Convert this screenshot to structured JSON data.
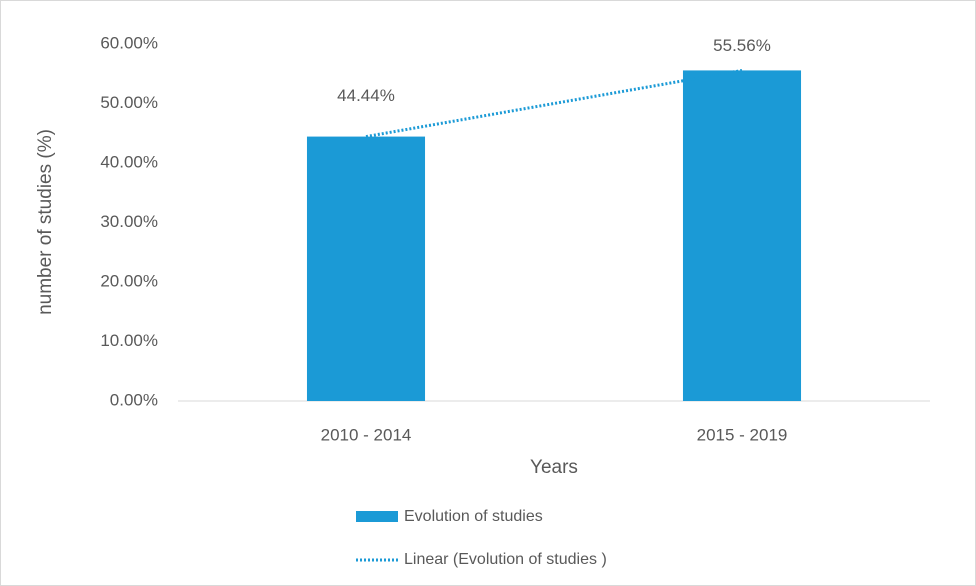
{
  "chart_data": {
    "type": "bar",
    "x_label": "Years",
    "y_label": "number of studies (%)",
    "categories": [
      "2010 - 2014",
      "2015 - 2019"
    ],
    "series": [
      {
        "name": "Evolution of studies",
        "color": "#1b9ad6",
        "values": [
          44.44,
          55.56
        ],
        "value_labels": [
          "44.44%",
          "55.56%"
        ]
      }
    ],
    "trendline": {
      "name": "Linear (Evolution of studies )",
      "color": "#1b9ad6"
    },
    "ylim": [
      0,
      60
    ],
    "yticks": [
      {
        "value": 0,
        "label": "0.00%"
      },
      {
        "value": 10,
        "label": "10.00%"
      },
      {
        "value": 20,
        "label": "20.00%"
      },
      {
        "value": 30,
        "label": "30.00%"
      },
      {
        "value": 40,
        "label": "40.00%"
      },
      {
        "value": 50,
        "label": "50.00%"
      },
      {
        "value": 60,
        "label": "60.00%"
      }
    ],
    "legend": "bottom"
  }
}
